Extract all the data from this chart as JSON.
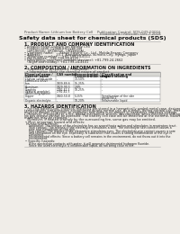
{
  "bg_color": "#f0ede8",
  "header_left": "Product Name: Lithium Ion Battery Cell",
  "header_right_line1": "Publication Control: SDS-049-00016",
  "header_right_line2": "Established / Revision: Dec.7.2018",
  "main_title": "Safety data sheet for chemical products (SDS)",
  "section1_title": "1. PRODUCT AND COMPANY IDENTIFICATION",
  "section1_lines": [
    "• Product name: Lithium Ion Battery Cell",
    "• Product code: Cylindrical-type cell",
    "   (UR18650U, UR18650L, UR18650A)",
    "• Company name:      Sanyo Electric Co., Ltd., Mobile Energy Company",
    "• Address:               20-1  Kamitakamatsu, Sumoto-City, Hyogo, Japan",
    "• Telephone number:    +81-799-24-4111",
    "• Fax number:   +81-799-24-4121",
    "• Emergency telephone number (daytime): +81-799-24-2662",
    "   (Night and holiday): +81-799-24-4101"
  ],
  "section2_title": "2. COMPOSITION / INFORMATION ON INGREDIENTS",
  "section2_intro": "• Substance or preparation: Preparation",
  "section2_sub": "  • Information about the chemical nature of product:",
  "table_headers": [
    "Chemical name / \nGeneral name",
    "CAS number",
    "Concentration /\nConcentration range",
    "Classification and\nhazard labeling"
  ],
  "table_rows": [
    [
      "Lithium cobalt oxide\n(LiMnxCo(1-x)O2)",
      "-",
      "30-50%",
      "-"
    ],
    [
      "Iron",
      "7439-89-6",
      "15-25%",
      "-"
    ],
    [
      "Aluminum",
      "7429-90-5",
      "2-8%",
      "-"
    ],
    [
      "Graphite\n(Natural graphite)\n(Artificial graphite)",
      "7782-42-5\n7782-42-5",
      "10-25%",
      "-"
    ],
    [
      "Copper",
      "7440-50-8",
      "5-15%",
      "Sensitization of the skin\ngroup No.2"
    ],
    [
      "Organic electrolyte",
      "-",
      "10-20%",
      "Inflammable liquid"
    ]
  ],
  "section3_title": "3. HAZARDS IDENTIFICATION",
  "section3_para1": "   For this battery cell, chemical materials are stored in a hermetically sealed metal case, designed to withstand\ntemperatures and pressures encountered during normal use. As a result, during normal use, there is no\nphysical danger of ignition or explosion and there is no danger of hazardous materials leakage.",
  "section3_para2": "   However, if exposed to a fire, added mechanical shocks, decomposed, when electrolyte leakage may occur.\nNo gas release cannot be operated. The battery cell case will be breached at the extreme, hazardous\nmaterials may be released.",
  "section3_para3": "   Moreover, if heated strongly by the surrounding fire, some gas may be emitted.",
  "s3b1": "• Most important hazard and effects:",
  "s3b1_lines": [
    "Human health effects:",
    "   Inhalation: The release of the electrolyte has an anaesthesia action and stimulates in respiratory tract.",
    "   Skin contact: The release of the electrolyte stimulates a skin. The electrolyte skin contact causes a",
    "   sore and stimulation on the skin.",
    "   Eye contact: The release of the electrolyte stimulates eyes. The electrolyte eye contact causes a sore",
    "   and stimulation on the eye. Especially, a substance that causes a strong inflammation of the eye is",
    "   contained.",
    "   Environmental effects: Since a battery cell remains in the environment, do not throw out it into the",
    "   environment."
  ],
  "s3b2": "• Specific hazards:",
  "s3b2_lines": [
    "   If the electrolyte contacts with water, it will generate detrimental hydrogen fluoride.",
    "   Since the used electrolyte is inflammable liquid, do not bring close to fire."
  ]
}
